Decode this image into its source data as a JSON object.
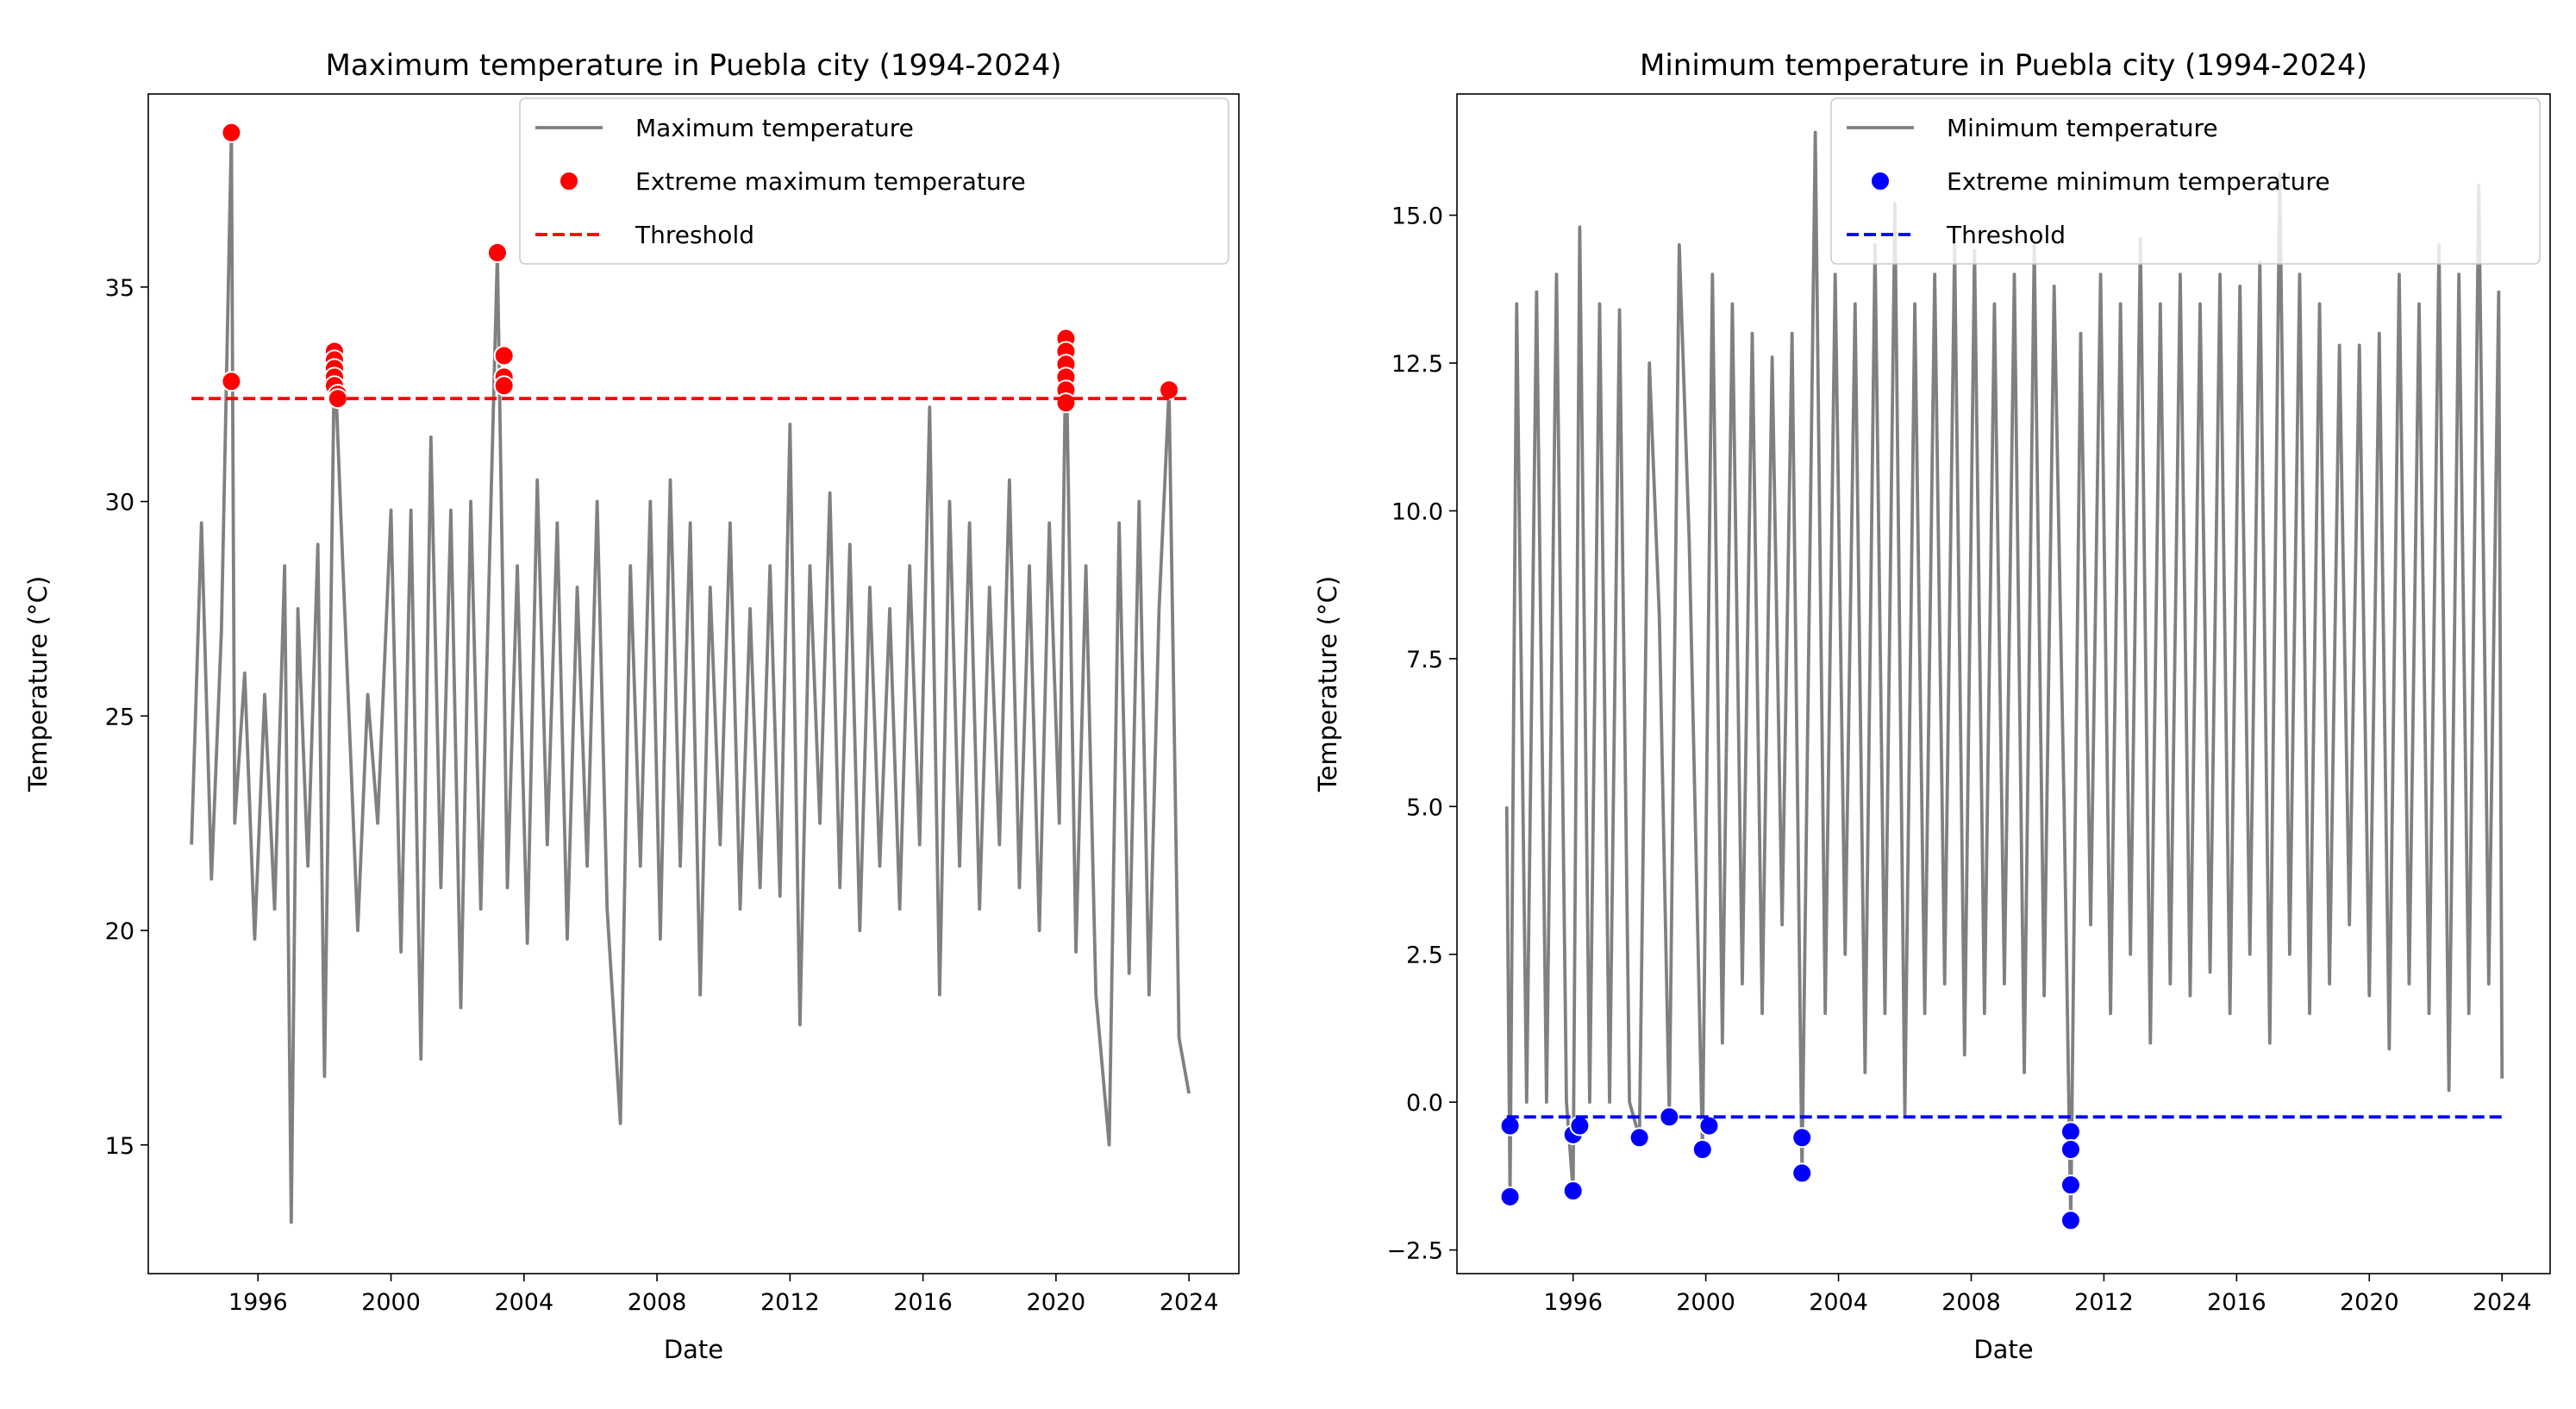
{
  "chart_data": [
    {
      "type": "line",
      "title": "Maximum temperature in Puebla city (1994-2024)",
      "x_label": "Date",
      "y_label": "Temperature (°C)",
      "xlim": [
        1992.7,
        2025.5
      ],
      "xticks": [
        1996,
        2000,
        2004,
        2008,
        2012,
        2016,
        2020,
        2024
      ],
      "ylim": [
        12,
        39.5
      ],
      "yticks": [
        15,
        20,
        25,
        30,
        35
      ],
      "legend": "upper right",
      "grid": false,
      "series": [
        {
          "name": "Maximum temperature",
          "type": "line",
          "color": "#808080",
          "x": [
            1994.0,
            1994.3,
            1994.6,
            1994.9,
            1995.2,
            1995.3,
            1995.6,
            1995.9,
            1996.2,
            1996.5,
            1996.8,
            1997.0,
            1997.2,
            1997.5,
            1997.8,
            1998.0,
            1998.3,
            1998.5,
            1999.0,
            1999.3,
            1999.6,
            2000.0,
            2000.3,
            2000.6,
            2000.9,
            2001.2,
            2001.5,
            2001.8,
            2002.1,
            2002.4,
            2002.7,
            2003.0,
            2003.2,
            2003.5,
            2003.8,
            2004.1,
            2004.4,
            2004.7,
            2005.0,
            2005.3,
            2005.6,
            2005.9,
            2006.2,
            2006.5,
            2006.9,
            2007.2,
            2007.5,
            2007.8,
            2008.1,
            2008.4,
            2008.7,
            2009.0,
            2009.3,
            2009.6,
            2009.9,
            2010.2,
            2010.5,
            2010.8,
            2011.1,
            2011.4,
            2011.7,
            2012.0,
            2012.3,
            2012.6,
            2012.9,
            2013.2,
            2013.5,
            2013.8,
            2014.1,
            2014.4,
            2014.7,
            2015.0,
            2015.3,
            2015.6,
            2015.9,
            2016.2,
            2016.5,
            2016.8,
            2017.1,
            2017.4,
            2017.7,
            2018.0,
            2018.3,
            2018.6,
            2018.9,
            2019.2,
            2019.5,
            2019.8,
            2020.1,
            2020.3,
            2020.6,
            2020.9,
            2021.2,
            2021.6,
            2021.9,
            2022.2,
            2022.5,
            2022.8,
            2023.1,
            2023.4,
            2023.7,
            2024.0
          ],
          "values": [
            22.0,
            29.5,
            21.2,
            27.0,
            38.6,
            22.5,
            26.0,
            19.8,
            25.5,
            20.5,
            28.5,
            13.2,
            27.5,
            21.5,
            29.0,
            16.6,
            33.5,
            29.5,
            20.0,
            25.5,
            22.5,
            29.8,
            19.5,
            29.8,
            17.0,
            31.5,
            21.0,
            29.8,
            18.2,
            30.0,
            20.5,
            29.8,
            35.8,
            21.0,
            28.5,
            19.7,
            30.5,
            22.0,
            29.5,
            19.8,
            28.0,
            21.5,
            30.0,
            20.5,
            15.5,
            28.5,
            21.5,
            30.0,
            19.8,
            30.5,
            21.5,
            29.5,
            18.5,
            28.0,
            22.0,
            29.5,
            20.5,
            27.5,
            21.0,
            28.5,
            20.8,
            31.8,
            17.8,
            28.5,
            22.5,
            30.2,
            21.0,
            29.0,
            20.0,
            28.0,
            21.5,
            27.5,
            20.5,
            28.5,
            22.0,
            32.2,
            18.5,
            30.0,
            21.5,
            29.5,
            20.5,
            28.0,
            22.0,
            30.5,
            21.0,
            28.5,
            20.0,
            29.5,
            22.5,
            33.8,
            19.5,
            28.5,
            18.5,
            15.0,
            29.5,
            19.0,
            30.0,
            18.5,
            27.5,
            32.6,
            17.5,
            16.2
          ]
        },
        {
          "name": "Extreme maximum temperature",
          "type": "scatter",
          "color": "#ff0000",
          "x": [
            1995.2,
            1995.2,
            1998.3,
            1998.3,
            1998.3,
            1998.3,
            1998.3,
            1998.4,
            1998.4,
            2003.2,
            2003.4,
            2003.4,
            2003.4,
            2020.3,
            2020.3,
            2020.3,
            2020.3,
            2020.3,
            2020.3,
            2023.4
          ],
          "values": [
            38.6,
            32.8,
            33.5,
            33.3,
            33.1,
            32.9,
            32.7,
            32.5,
            32.4,
            35.8,
            33.4,
            32.9,
            32.7,
            33.8,
            33.5,
            33.2,
            32.9,
            32.6,
            32.3,
            32.6
          ]
        },
        {
          "name": "Threshold",
          "type": "line",
          "style": "dashed",
          "color": "#ff0000",
          "x": [
            1994.0,
            2024.0
          ],
          "values": [
            32.4,
            32.4
          ]
        }
      ]
    },
    {
      "type": "line",
      "title": "Minimum temperature in Puebla city (1994-2024)",
      "x_label": "Date",
      "y_label": "Temperature (°C)",
      "xlim": [
        1992.5,
        2025.45
      ],
      "xticks": [
        1996,
        2000,
        2004,
        2008,
        2012,
        2016,
        2020,
        2024
      ],
      "ylim": [
        -2.9,
        17.05
      ],
      "yticks": [
        {
          "value": -2.5,
          "label": "−2.5"
        },
        {
          "value": 0,
          "label": "0.0"
        },
        2.5,
        {
          "value": 5,
          "label": "5.0"
        },
        7.5,
        {
          "value": 10,
          "label": "10.0"
        },
        12.5,
        {
          "value": 15,
          "label": "15.0"
        }
      ],
      "legend": "upper right",
      "grid": false,
      "series": [
        {
          "name": "Minimum temperature",
          "type": "line",
          "color": "#808080",
          "x": [
            1994.0,
            1994.1,
            1994.3,
            1994.6,
            1994.9,
            1995.2,
            1995.5,
            1995.8,
            1996.0,
            1996.2,
            1996.5,
            1996.8,
            1997.1,
            1997.4,
            1997.7,
            1998.0,
            1998.3,
            1998.6,
            1998.9,
            1999.2,
            1999.5,
            1999.9,
            2000.2,
            2000.5,
            2000.8,
            2001.1,
            2001.4,
            2001.7,
            2002.0,
            2002.3,
            2002.6,
            2002.9,
            2003.3,
            2003.6,
            2003.9,
            2004.2,
            2004.5,
            2004.8,
            2005.1,
            2005.4,
            2005.7,
            2006.0,
            2006.3,
            2006.6,
            2006.9,
            2007.2,
            2007.5,
            2007.8,
            2008.1,
            2008.4,
            2008.7,
            2009.0,
            2009.3,
            2009.6,
            2009.9,
            2010.2,
            2010.5,
            2010.8,
            2011.0,
            2011.3,
            2011.6,
            2011.9,
            2012.2,
            2012.5,
            2012.8,
            2013.1,
            2013.4,
            2013.7,
            2014.0,
            2014.3,
            2014.6,
            2014.9,
            2015.2,
            2015.5,
            2015.8,
            2016.1,
            2016.4,
            2016.7,
            2017.0,
            2017.3,
            2017.6,
            2017.9,
            2018.2,
            2018.5,
            2018.8,
            2019.1,
            2019.4,
            2019.7,
            2020.0,
            2020.3,
            2020.6,
            2020.9,
            2021.2,
            2021.5,
            2021.8,
            2022.1,
            2022.4,
            2022.7,
            2023.0,
            2023.3,
            2023.6,
            2023.9,
            2024.0
          ],
          "values": [
            5.0,
            -1.6,
            13.5,
            0.0,
            13.7,
            0.0,
            14.0,
            0.0,
            -1.5,
            14.8,
            0.0,
            13.5,
            0.0,
            13.4,
            0.0,
            -0.6,
            12.5,
            8.2,
            -0.25,
            14.5,
            9.5,
            -0.8,
            14.0,
            1.0,
            13.5,
            2.0,
            13.0,
            1.5,
            12.6,
            3.0,
            13.0,
            -1.2,
            16.4,
            1.5,
            14.0,
            2.5,
            13.5,
            0.5,
            14.5,
            1.5,
            15.2,
            -0.2,
            13.5,
            1.5,
            14.0,
            2.0,
            14.5,
            0.8,
            14.4,
            1.5,
            13.5,
            2.0,
            14.0,
            0.5,
            14.5,
            1.8,
            13.8,
            5.0,
            -2.0,
            13.0,
            3.0,
            14.0,
            1.5,
            13.5,
            2.5,
            14.6,
            1.0,
            13.5,
            2.0,
            14.0,
            1.8,
            13.5,
            2.2,
            14.0,
            1.5,
            13.8,
            2.5,
            14.2,
            1.0,
            15.7,
            2.5,
            14.0,
            1.5,
            13.5,
            2.0,
            12.8,
            3.0,
            12.8,
            1.8,
            13.0,
            0.9,
            14.0,
            2.0,
            13.5,
            1.5,
            14.5,
            0.2,
            14.0,
            1.5,
            15.5,
            2.0,
            13.7,
            0.4
          ]
        },
        {
          "name": "Extreme minimum temperature",
          "type": "scatter",
          "color": "#0000ff",
          "x": [
            1994.1,
            1994.1,
            1996.0,
            1996.0,
            1996.2,
            1998.0,
            1998.9,
            1999.9,
            2000.1,
            2002.9,
            2002.9,
            2011.0,
            2011.0,
            2011.0,
            2011.0
          ],
          "values": [
            -0.4,
            -1.6,
            -0.55,
            -1.5,
            -0.4,
            -0.6,
            -0.25,
            -0.8,
            -0.4,
            -0.6,
            -1.2,
            -0.5,
            -0.8,
            -1.4,
            -2.0
          ]
        },
        {
          "name": "Threshold",
          "type": "line",
          "style": "dashed",
          "color": "#0000ff",
          "x": [
            1994.0,
            2024.0
          ],
          "values": [
            -0.25,
            -0.25
          ]
        }
      ]
    }
  ]
}
